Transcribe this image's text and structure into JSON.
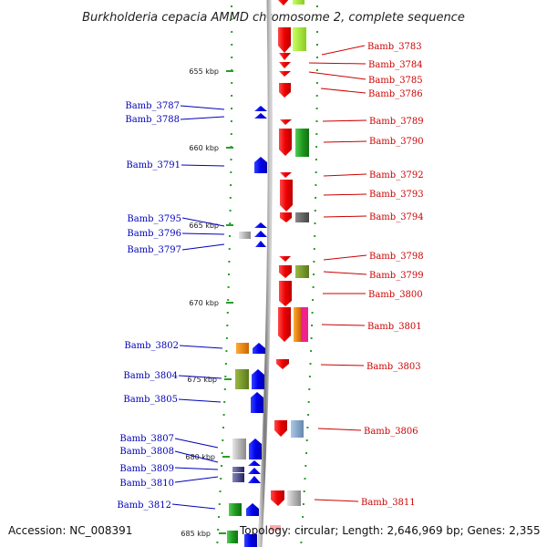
{
  "title": "Burkholderia cepacia AMMD chromosome 2, complete sequence",
  "footer": {
    "accession": "Accession: NC_008391",
    "topology": "Topology: circular; Length: 2,646,969 bp; Genes: 2,355"
  },
  "ruler": [
    "655 kbp",
    "660 kbp",
    "665 kbp",
    "670 kbp",
    "675 kbp",
    "680 kbp",
    "685 kbp"
  ],
  "left_labels": [
    "Bamb_3787",
    "Bamb_3788",
    "Bamb_3791",
    "Bamb_3795",
    "Bamb_3796",
    "Bamb_3797",
    "Bamb_3802",
    "Bamb_3804",
    "Bamb_3805",
    "Bamb_3807",
    "Bamb_3808",
    "Bamb_3809",
    "Bamb_3810",
    "Bamb_3812"
  ],
  "right_labels": [
    "Bamb_3783",
    "Bamb_3784",
    "Bamb_3785",
    "Bamb_3786",
    "Bamb_3789",
    "Bamb_3790",
    "Bamb_3792",
    "Bamb_3793",
    "Bamb_3794",
    "Bamb_3798",
    "Bamb_3799",
    "Bamb_3800",
    "Bamb_3801",
    "Bamb_3803",
    "Bamb_3806",
    "Bamb_3811"
  ],
  "colors": {
    "forward_gene": "#ee0000",
    "reverse_gene": "#0000ee",
    "left_label": "#0000bb",
    "right_label": "#cc0000",
    "green_track": "#2a9d2a",
    "backbone": "#888888"
  }
}
